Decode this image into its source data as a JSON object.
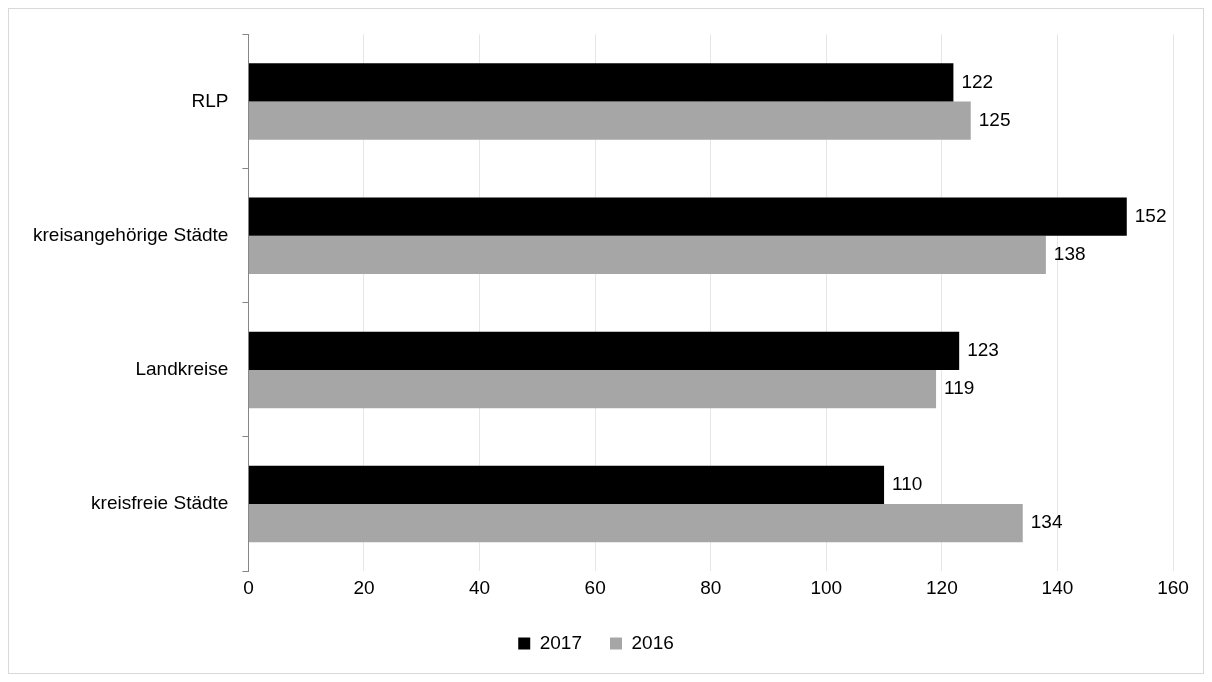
{
  "chart_data": {
    "type": "bar",
    "orientation": "horizontal",
    "categories": [
      "RLP",
      "kreisangehörige Städte",
      "Landkreise",
      "kreisfreie Städte"
    ],
    "series": [
      {
        "name": "2017",
        "color": "#000000",
        "values": [
          122,
          152,
          123,
          110
        ]
      },
      {
        "name": "2016",
        "color": "#a6a6a6",
        "values": [
          125,
          138,
          119,
          134
        ]
      }
    ],
    "xlim": [
      0,
      160
    ],
    "xticks": [
      0,
      20,
      40,
      60,
      80,
      100,
      120,
      140,
      160
    ],
    "grid": "x",
    "legend": "bottom",
    "data_labels": true
  }
}
